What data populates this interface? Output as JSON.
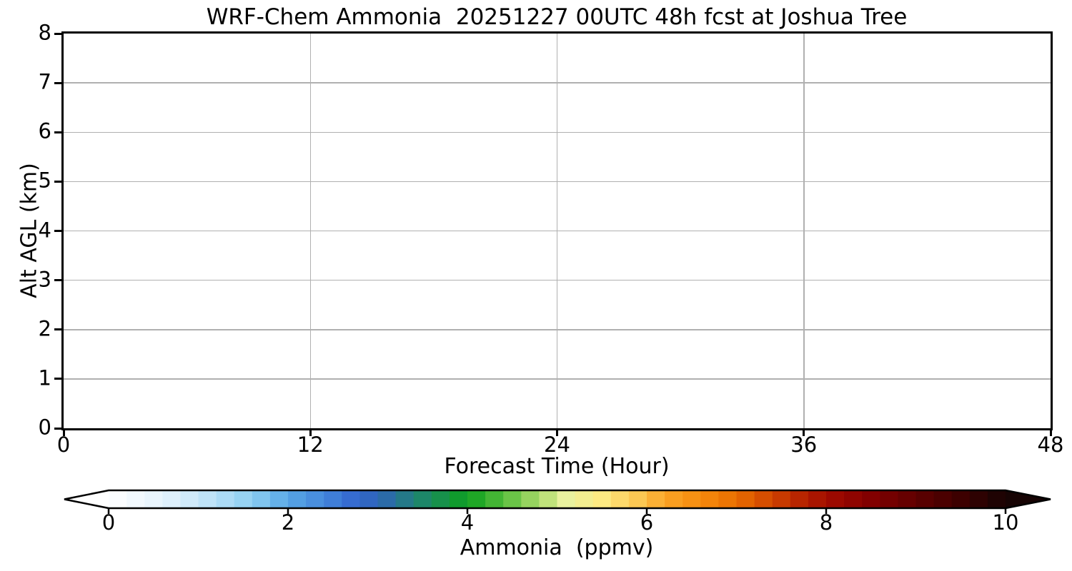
{
  "chart_data": {
    "type": "heatmap",
    "title": "WRF-Chem Ammonia  20251227 00UTC 48h fcst at Joshua Tree",
    "xlabel": "Forecast Time (Hour)",
    "ylabel": "Alt AGL (km)",
    "xlim": [
      0,
      48
    ],
    "ylim": [
      0,
      8
    ],
    "xticks": [
      0,
      12,
      24,
      36,
      48
    ],
    "yticks": [
      0,
      1,
      2,
      3,
      4,
      5,
      6,
      7,
      8
    ],
    "grid": true,
    "legend": "none",
    "series": [],
    "field_note": "plot area is uniform white: ammonia concentration ~0 ppmv everywhere across 0-48 h and 0-8 km",
    "colorbar": {
      "label": "Ammonia  (ppmv)",
      "min": 0,
      "max": 10,
      "ticks": [
        0,
        2,
        4,
        6,
        8,
        10
      ],
      "levels": 50,
      "extend": "both",
      "orientation": "horizontal",
      "stops": [
        {
          "v": 0.0,
          "c": "#ffffff"
        },
        {
          "v": 0.4,
          "c": "#eef7fd"
        },
        {
          "v": 0.8,
          "c": "#d9eefb"
        },
        {
          "v": 1.2,
          "c": "#b6dff7"
        },
        {
          "v": 1.6,
          "c": "#8dcff2"
        },
        {
          "v": 2.0,
          "c": "#58a7e6"
        },
        {
          "v": 2.4,
          "c": "#4487db"
        },
        {
          "v": 2.8,
          "c": "#3263cd"
        },
        {
          "v": 3.1,
          "c": "#2b6ba8"
        },
        {
          "v": 3.5,
          "c": "#1d8769"
        },
        {
          "v": 4.0,
          "c": "#0da01e"
        },
        {
          "v": 4.4,
          "c": "#55bc3c"
        },
        {
          "v": 4.8,
          "c": "#abdb6a"
        },
        {
          "v": 5.1,
          "c": "#e9f29e"
        },
        {
          "v": 5.5,
          "c": "#fdea82"
        },
        {
          "v": 5.9,
          "c": "#fcc853"
        },
        {
          "v": 6.2,
          "c": "#faa426"
        },
        {
          "v": 6.6,
          "c": "#f68b0d"
        },
        {
          "v": 7.0,
          "c": "#e96e00"
        },
        {
          "v": 7.4,
          "c": "#d04400"
        },
        {
          "v": 7.8,
          "c": "#b01b00"
        },
        {
          "v": 8.1,
          "c": "#9c0900"
        },
        {
          "v": 8.5,
          "c": "#820000"
        },
        {
          "v": 9.0,
          "c": "#5f0000"
        },
        {
          "v": 9.5,
          "c": "#3d0000"
        },
        {
          "v": 10.0,
          "c": "#170404"
        }
      ]
    }
  },
  "colors": {
    "background": "#ffffff",
    "axis": "#000000",
    "grid": "#b0b0b0",
    "colorbar_outline": "#000000"
  }
}
